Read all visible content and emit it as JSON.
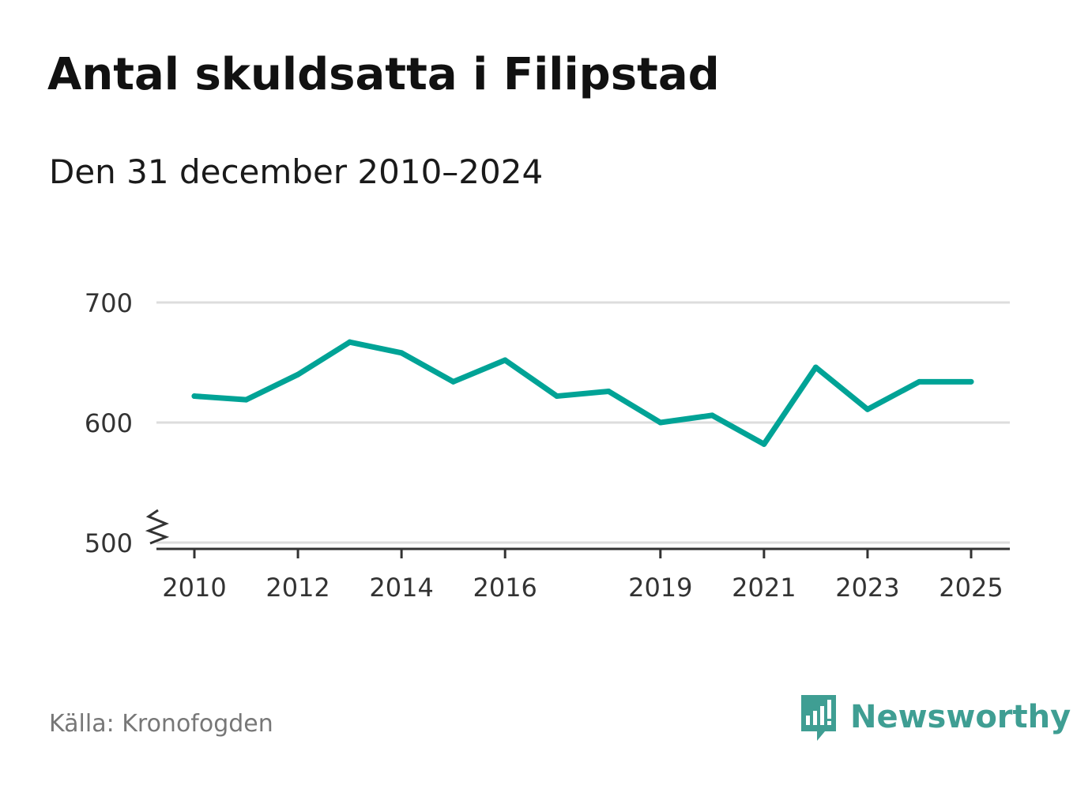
{
  "title": "Antal skuldsatta i Filipstad",
  "subtitle": "Den 31 december 2010–2024",
  "source": "Källa: Kronofogden",
  "brand": {
    "name": "Newsworthy",
    "icon": "newsworthy-logo-icon",
    "color": "#3f9e93"
  },
  "chart_data": {
    "type": "line",
    "title": "Antal skuldsatta i Filipstad",
    "subtitle": "Den 31 december 2010–2024",
    "xlabel": "",
    "ylabel": "",
    "x": [
      2010,
      2011,
      2012,
      2013,
      2014,
      2015,
      2016,
      2017,
      2018,
      2019,
      2020,
      2021,
      2022,
      2023,
      2024,
      2025
    ],
    "series": [
      {
        "name": "Antal skuldsatta",
        "color": "#00a396",
        "values": [
          622,
          619,
          640,
          667,
          658,
          634,
          652,
          622,
          626,
          600,
          606,
          582,
          646,
          611,
          634,
          634
        ]
      }
    ],
    "xlim": [
      2010,
      2025
    ],
    "ylim": [
      500,
      700
    ],
    "y_ticks": [
      500,
      600,
      700
    ],
    "x_ticks": [
      2010,
      2012,
      2014,
      2016,
      2019,
      2021,
      2023,
      2025
    ],
    "y_tick_labels": [
      "500",
      "600",
      "700"
    ],
    "x_tick_labels": [
      "2010",
      "2012",
      "2014",
      "2016",
      "2019",
      "2021",
      "2023",
      "2025"
    ],
    "grid": true,
    "axis_break": true
  }
}
